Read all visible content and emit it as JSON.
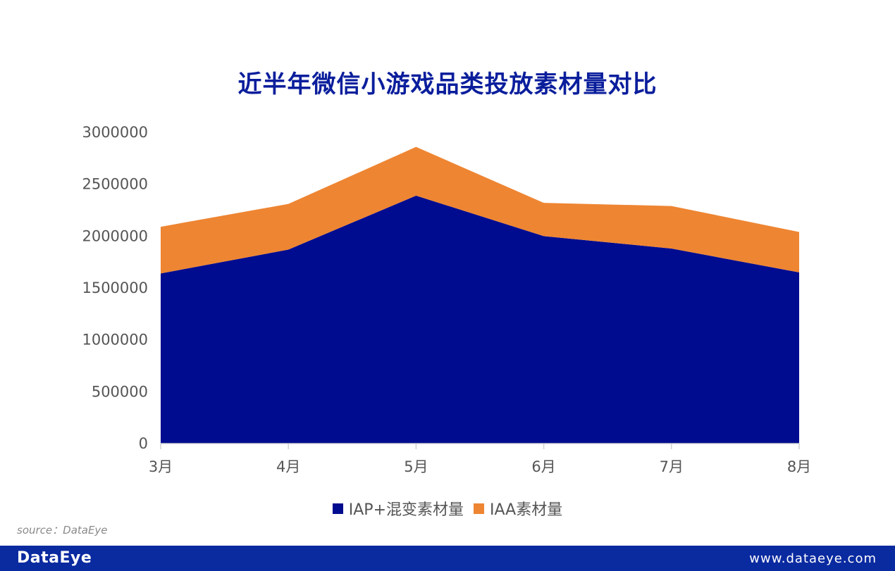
{
  "chart_data": {
    "type": "area",
    "stacked": true,
    "title": "近半年微信小游戏品类投放素材量对比",
    "categories": [
      "3月",
      "4月",
      "5月",
      "6月",
      "7月",
      "8月"
    ],
    "series": [
      {
        "name": "IAP+混变素材量",
        "color": "#000c8f",
        "values": [
          1640000,
          1870000,
          2390000,
          2000000,
          1880000,
          1650000
        ]
      },
      {
        "name": "IAA素材量",
        "color": "#ee8532",
        "values": [
          450000,
          440000,
          470000,
          320000,
          410000,
          390000
        ]
      }
    ],
    "y_ticks": [
      "0",
      "500000",
      "1000000",
      "1500000",
      "2000000",
      "2500000",
      "3000000"
    ],
    "ylim": [
      0,
      3000000
    ],
    "xlabel": "",
    "ylabel": "",
    "grid": false,
    "legend_position": "bottom"
  },
  "source": "source：DataEye",
  "footer": {
    "brand": "DataEye",
    "website": "www.dataeye.com"
  }
}
